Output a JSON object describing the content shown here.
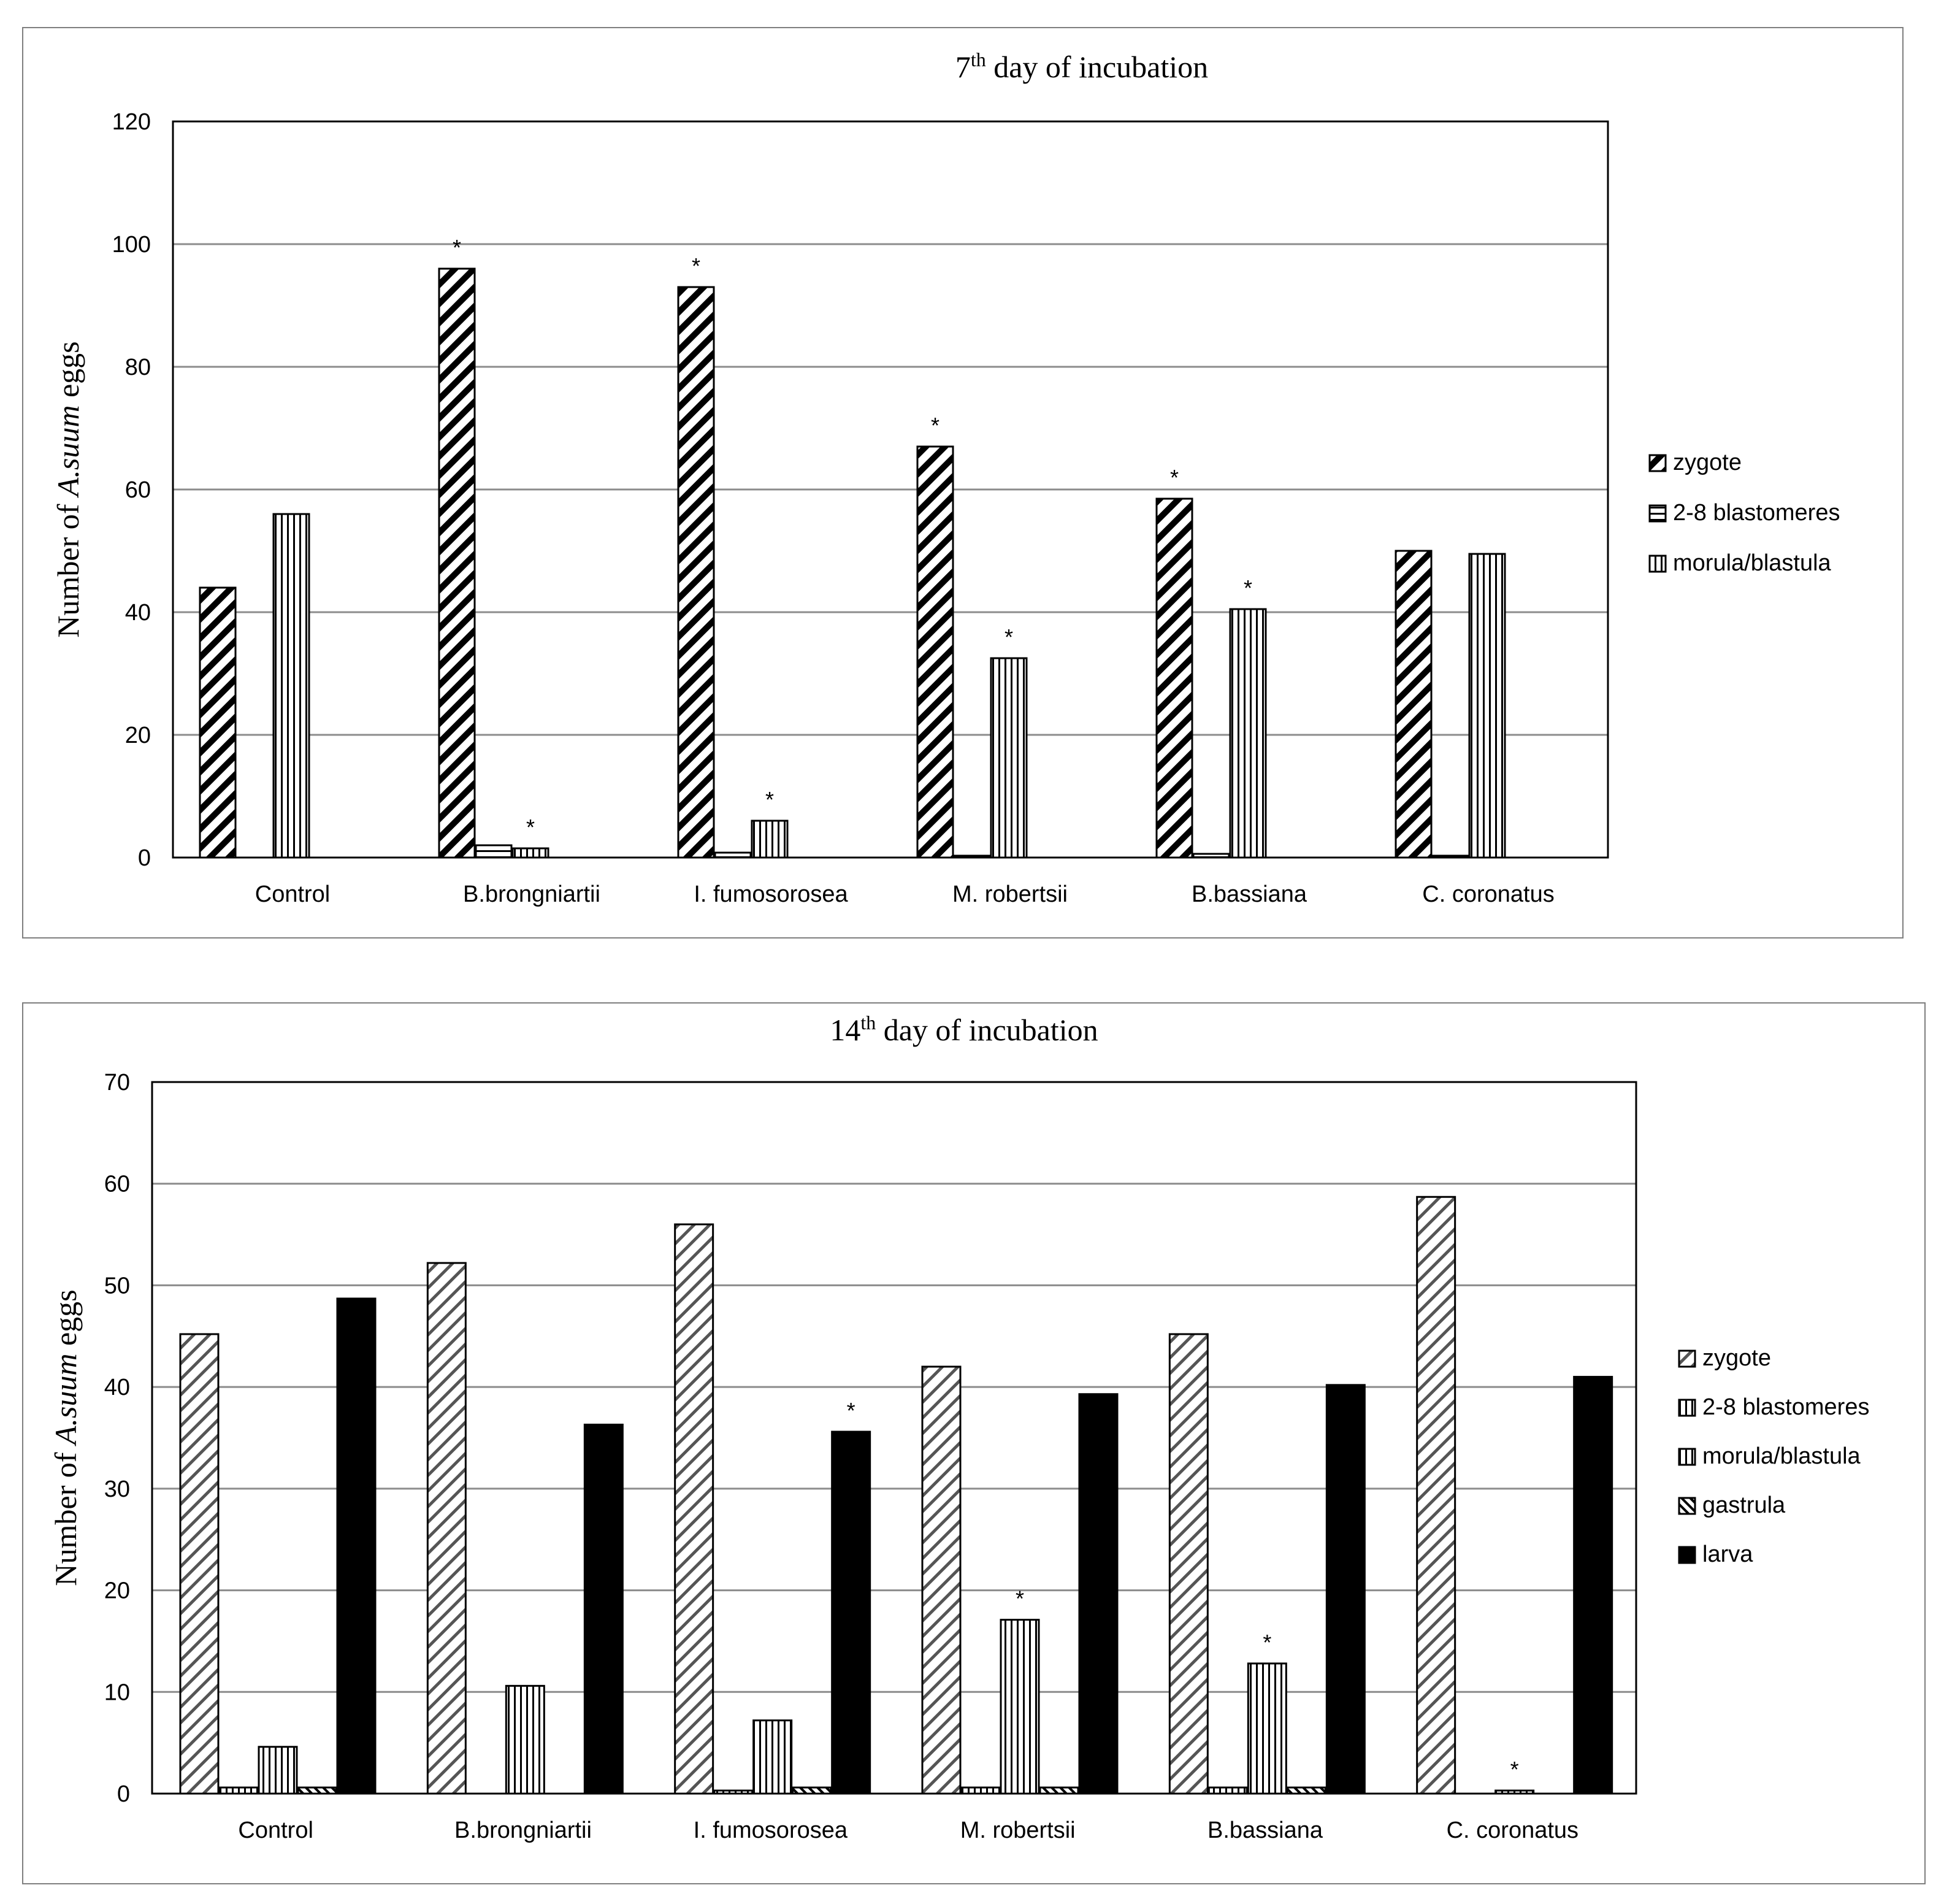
{
  "chart_data": [
    {
      "type": "bar",
      "title_main": "7",
      "title_sup": "th",
      "title_rest": " day of incubation",
      "ylabel_pre": "Number of ",
      "ylabel_italic": "A.suum",
      "ylabel_post": " eggs",
      "ylim": [
        0,
        120
      ],
      "yticks": [
        "0",
        "20",
        "40",
        "60",
        "80",
        "100",
        "120"
      ],
      "grid": true,
      "legend_position": "right",
      "categories": [
        "Control",
        "B.brongniartii",
        "I. fumosorosea",
        "M. robertsii",
        "B.bassiana",
        "C. coronatus"
      ],
      "series": [
        {
          "name": "zygote",
          "values": [
            44,
            96,
            93,
            67,
            58.5,
            50
          ],
          "stars": [
            false,
            true,
            true,
            true,
            true,
            false
          ]
        },
        {
          "name": "2-8 blastomeres",
          "values": [
            0,
            2,
            0.8,
            0.3,
            0.6,
            0.3
          ],
          "stars": [
            false,
            false,
            false,
            false,
            false,
            false
          ]
        },
        {
          "name": "morula/blastula",
          "values": [
            56,
            1.5,
            6,
            32.5,
            40.5,
            49.5
          ],
          "stars": [
            false,
            true,
            true,
            true,
            true,
            false
          ]
        }
      ],
      "star_symbol": "*"
    },
    {
      "type": "bar",
      "title_main": "14",
      "title_sup": "th",
      "title_rest": " day of incubation",
      "ylabel_pre": "Number of ",
      "ylabel_italic": "A.suum",
      "ylabel_post": " eggs",
      "ylim": [
        0,
        70
      ],
      "yticks": [
        "0",
        "10",
        "20",
        "30",
        "40",
        "50",
        "60",
        "70"
      ],
      "grid": true,
      "legend_position": "right",
      "categories": [
        "Control",
        "B.brongniartii",
        "I. fumosorosea",
        "M. robertsii",
        "B.bassiana",
        "C. coronatus"
      ],
      "series": [
        {
          "name": "zygote",
          "values": [
            45.2,
            52.2,
            56,
            42,
            45.2,
            58.7
          ],
          "stars": [
            false,
            false,
            false,
            false,
            false,
            false
          ]
        },
        {
          "name": "2-8 blastomeres",
          "values": [
            0.6,
            0,
            0.3,
            0.6,
            0.6,
            0
          ],
          "stars": [
            false,
            false,
            false,
            false,
            false,
            false
          ]
        },
        {
          "name": "morula/blastula",
          "values": [
            4.6,
            10.6,
            7.2,
            17.1,
            12.8,
            0.3
          ],
          "stars": [
            false,
            false,
            false,
            true,
            true,
            true
          ]
        },
        {
          "name": "gastrula",
          "values": [
            0.6,
            0,
            0.6,
            0.6,
            0.6,
            0
          ],
          "stars": [
            false,
            false,
            false,
            false,
            false,
            false
          ]
        },
        {
          "name": "larva",
          "values": [
            48.7,
            36.3,
            35.6,
            39.3,
            40.2,
            41
          ],
          "stars": [
            false,
            false,
            true,
            false,
            false,
            false
          ]
        }
      ],
      "star_symbol": "*"
    }
  ]
}
